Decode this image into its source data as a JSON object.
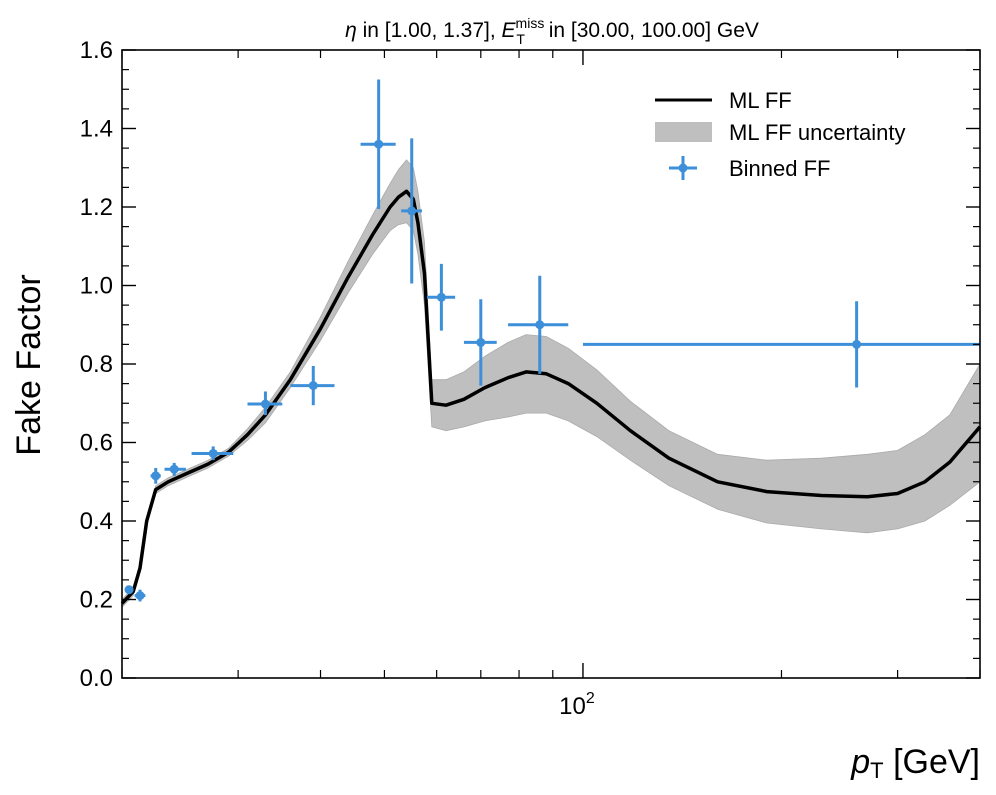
{
  "chart_data": {
    "type": "line",
    "title": {
      "eta_symbol": "η",
      "eta_range": " in [1.00, 1.37], ",
      "met_symbol": "E",
      "met_sub": "T",
      "met_sup": "miss",
      "met_range": " in [30.00, 100.00] GeV"
    },
    "ylabel": "Fake Factor",
    "xlabel": {
      "symbol": "p",
      "sub": "T",
      "unit": " [GeV]"
    },
    "x_scale": "log",
    "xlim": [
      20,
      400
    ],
    "ylim": [
      0.0,
      1.6
    ],
    "y_ticks": [
      0.0,
      0.2,
      0.4,
      0.6,
      0.8,
      1.0,
      1.2,
      1.4,
      1.6
    ],
    "y_tick_labels": [
      "0.0",
      "0.2",
      "0.4",
      "0.6",
      "0.8",
      "1.0",
      "1.2",
      "1.4",
      "1.6"
    ],
    "x_major_tick": {
      "value": 100,
      "base": "10",
      "exponent": "2"
    },
    "x_minor_ticks": [
      20,
      30,
      40,
      50,
      60,
      70,
      80,
      90,
      200,
      300,
      400
    ],
    "legend": {
      "position": "top-right",
      "entries": [
        "ML FF",
        "ML FF uncertainty",
        "Binned FF"
      ]
    },
    "colors": {
      "line": "#000000",
      "band": "#bfbfbf",
      "binned": "#3d8fd9"
    },
    "series": [
      {
        "name": "ML FF",
        "x": [
          20,
          20.8,
          21.3,
          21.8,
          22.5,
          23.5,
          25,
          27,
          29,
          31,
          33,
          36,
          40,
          44,
          48,
          51,
          52.5,
          54,
          55.3,
          56.2,
          57.5,
          59,
          62,
          66,
          71,
          77,
          82,
          88,
          95,
          105,
          118,
          135,
          160,
          190,
          230,
          270,
          300,
          330,
          360,
          400
        ],
        "y": [
          0.19,
          0.22,
          0.28,
          0.4,
          0.48,
          0.5,
          0.52,
          0.545,
          0.575,
          0.62,
          0.67,
          0.76,
          0.89,
          1.02,
          1.13,
          1.2,
          1.225,
          1.24,
          1.22,
          1.16,
          1.03,
          0.7,
          0.695,
          0.71,
          0.74,
          0.765,
          0.78,
          0.775,
          0.75,
          0.7,
          0.63,
          0.56,
          0.5,
          0.475,
          0.465,
          0.462,
          0.47,
          0.5,
          0.55,
          0.64
        ],
        "lo": [
          0.18,
          0.21,
          0.27,
          0.39,
          0.47,
          0.49,
          0.51,
          0.535,
          0.565,
          0.605,
          0.65,
          0.74,
          0.86,
          0.98,
          1.08,
          1.14,
          1.155,
          1.16,
          1.14,
          1.08,
          0.95,
          0.64,
          0.63,
          0.64,
          0.655,
          0.665,
          0.675,
          0.675,
          0.655,
          0.615,
          0.555,
          0.49,
          0.43,
          0.395,
          0.38,
          0.37,
          0.38,
          0.4,
          0.44,
          0.5
        ],
        "hi": [
          0.2,
          0.23,
          0.29,
          0.41,
          0.49,
          0.51,
          0.53,
          0.555,
          0.585,
          0.635,
          0.69,
          0.78,
          0.92,
          1.06,
          1.18,
          1.26,
          1.295,
          1.32,
          1.3,
          1.24,
          1.11,
          0.76,
          0.76,
          0.78,
          0.82,
          0.855,
          0.875,
          0.87,
          0.84,
          0.785,
          0.705,
          0.63,
          0.57,
          0.555,
          0.56,
          0.57,
          0.58,
          0.62,
          0.67,
          0.8
        ]
      },
      {
        "name": "Binned FF",
        "points": [
          {
            "x": 20.5,
            "xlo": 20.2,
            "xhi": 20.8,
            "y": 0.225,
            "ylo": 0.215,
            "yhi": 0.235
          },
          {
            "x": 21.3,
            "xlo": 20.9,
            "xhi": 21.7,
            "y": 0.21,
            "ylo": 0.195,
            "yhi": 0.225
          },
          {
            "x": 22.5,
            "xlo": 22.1,
            "xhi": 22.9,
            "y": 0.515,
            "ylo": 0.495,
            "yhi": 0.535
          },
          {
            "x": 24,
            "xlo": 23.2,
            "xhi": 25,
            "y": 0.532,
            "ylo": 0.515,
            "yhi": 0.548
          },
          {
            "x": 27.5,
            "xlo": 25.5,
            "xhi": 29.5,
            "y": 0.572,
            "ylo": 0.555,
            "yhi": 0.59
          },
          {
            "x": 33,
            "xlo": 31,
            "xhi": 35,
            "y": 0.698,
            "ylo": 0.67,
            "yhi": 0.73
          },
          {
            "x": 39,
            "xlo": 36,
            "xhi": 42,
            "y": 0.745,
            "ylo": 0.695,
            "yhi": 0.795
          },
          {
            "x": 49,
            "xlo": 46,
            "xhi": 52,
            "y": 1.36,
            "ylo": 1.195,
            "yhi": 1.525
          },
          {
            "x": 55,
            "xlo": 53,
            "xhi": 57,
            "y": 1.19,
            "ylo": 1.005,
            "yhi": 1.375
          },
          {
            "x": 61,
            "xlo": 58,
            "xhi": 64,
            "y": 0.97,
            "ylo": 0.885,
            "yhi": 1.055
          },
          {
            "x": 70,
            "xlo": 66,
            "xhi": 74,
            "y": 0.855,
            "ylo": 0.745,
            "yhi": 0.965
          },
          {
            "x": 86,
            "xlo": 77,
            "xhi": 95,
            "y": 0.9,
            "ylo": 0.775,
            "yhi": 1.025
          },
          {
            "x": 260,
            "xlo": 100,
            "xhi": 400,
            "y": 0.85,
            "ylo": 0.74,
            "yhi": 0.96
          }
        ]
      }
    ]
  }
}
